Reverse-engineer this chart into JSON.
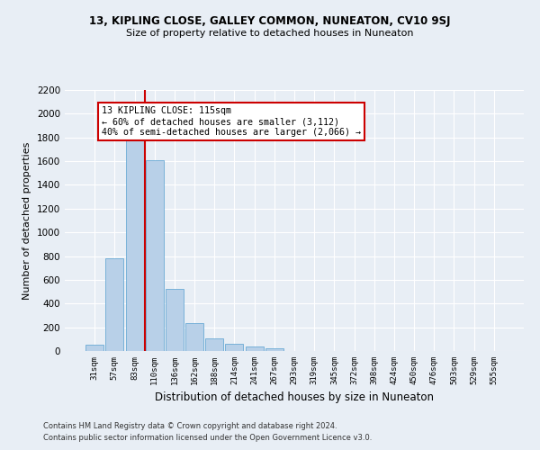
{
  "title1": "13, KIPLING CLOSE, GALLEY COMMON, NUNEATON, CV10 9SJ",
  "title2": "Size of property relative to detached houses in Nuneaton",
  "xlabel": "Distribution of detached houses by size in Nuneaton",
  "ylabel": "Number of detached properties",
  "categories": [
    "31sqm",
    "57sqm",
    "83sqm",
    "110sqm",
    "136sqm",
    "162sqm",
    "188sqm",
    "214sqm",
    "241sqm",
    "267sqm",
    "293sqm",
    "319sqm",
    "345sqm",
    "372sqm",
    "398sqm",
    "424sqm",
    "450sqm",
    "476sqm",
    "503sqm",
    "529sqm",
    "555sqm"
  ],
  "values": [
    55,
    780,
    1820,
    1610,
    525,
    235,
    110,
    57,
    37,
    20,
    0,
    0,
    0,
    0,
    0,
    0,
    0,
    0,
    0,
    0,
    0
  ],
  "bar_color": "#b8d0e8",
  "bar_edge_color": "#6aaad4",
  "annotation_text": "13 KIPLING CLOSE: 115sqm\n← 60% of detached houses are smaller (3,112)\n40% of semi-detached houses are larger (2,066) →",
  "ylim_max": 2200,
  "yticks": [
    0,
    200,
    400,
    600,
    800,
    1000,
    1200,
    1400,
    1600,
    1800,
    2000,
    2200
  ],
  "footer1": "Contains HM Land Registry data © Crown copyright and database right 2024.",
  "footer2": "Contains public sector information licensed under the Open Government Licence v3.0.",
  "bg_color": "#e8eef5",
  "grid_color": "#ffffff",
  "annotation_box_color": "#ffffff",
  "annotation_box_edge": "#cc0000",
  "red_line_color": "#cc0000",
  "red_line_x": 2.5
}
